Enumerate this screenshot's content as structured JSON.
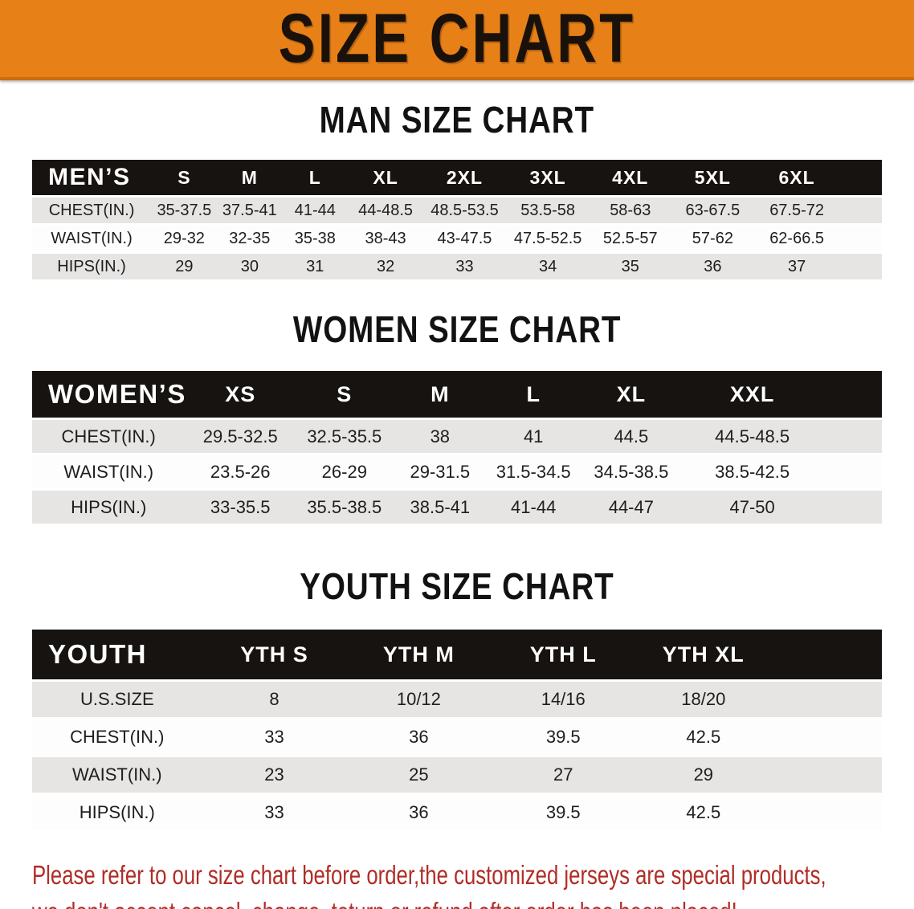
{
  "banner": {
    "title": "SIZE CHART"
  },
  "colors": {
    "banner_bg": "#e88018",
    "banner_border": "#c96f10",
    "header_bar": "#171310",
    "stripe_gray": "#e6e5e3",
    "stripe_white": "#fdfdfd",
    "disclaimer_red": "#b02d26"
  },
  "sections": [
    {
      "heading": "MAN SIZE CHART",
      "table": {
        "header_label": "MEN’S",
        "columns": [
          "S",
          "M",
          "L",
          "XL",
          "2XL",
          "3XL",
          "4XL",
          "5XL",
          "6XL"
        ],
        "rows": [
          {
            "label": "CHEST(IN.)",
            "values": [
              "35-37.5",
              "37.5-41",
              "41-44",
              "44-48.5",
              "48.5-53.5",
              "53.5-58",
              "58-63",
              "63-67.5",
              "67.5-72"
            ]
          },
          {
            "label": "WAIST(IN.)",
            "values": [
              "29-32",
              "32-35",
              "35-38",
              "38-43",
              "43-47.5",
              "47.5-52.5",
              "52.5-57",
              "57-62",
              "62-66.5"
            ]
          },
          {
            "label": "HIPS(IN.)",
            "values": [
              "29",
              "30",
              "31",
              "32",
              "33",
              "34",
              "35",
              "36",
              "37"
            ]
          }
        ]
      }
    },
    {
      "heading": "WOMEN SIZE CHART",
      "table": {
        "header_label": "WOMEN’S",
        "columns": [
          "XS",
          "S",
          "M",
          "L",
          "XL",
          "XXL"
        ],
        "rows": [
          {
            "label": "CHEST(IN.)",
            "values": [
              "29.5-32.5",
              "32.5-35.5",
              "38",
              "41",
              "44.5",
              "44.5-48.5"
            ]
          },
          {
            "label": "WAIST(IN.)",
            "values": [
              "23.5-26",
              "26-29",
              "29-31.5",
              "31.5-34.5",
              "34.5-38.5",
              "38.5-42.5"
            ]
          },
          {
            "label": "HIPS(IN.)",
            "values": [
              "33-35.5",
              "35.5-38.5",
              "38.5-41",
              "41-44",
              "44-47",
              "47-50"
            ]
          }
        ]
      }
    },
    {
      "heading": "YOUTH SIZE CHART",
      "table": {
        "header_label": "YOUTH",
        "columns": [
          "YTH S",
          "YTH M",
          "YTH L",
          "YTH XL"
        ],
        "rows": [
          {
            "label": "U.S.SIZE",
            "values": [
              "8",
              "10/12",
              "14/16",
              "18/20"
            ]
          },
          {
            "label": "CHEST(IN.)",
            "values": [
              "33",
              "36",
              "39.5",
              "42.5"
            ]
          },
          {
            "label": "WAIST(IN.)",
            "values": [
              "23",
              "25",
              "27",
              "29"
            ]
          },
          {
            "label": "HIPS(IN.)",
            "values": [
              "33",
              "36",
              "39.5",
              "42.5"
            ]
          }
        ]
      }
    }
  ],
  "disclaimer": {
    "line1": "Please refer to our size chart before order,the customized jerseys are special products,",
    "line2": "we don't accept cancel, change, teturn or refund after order has been placed!"
  }
}
